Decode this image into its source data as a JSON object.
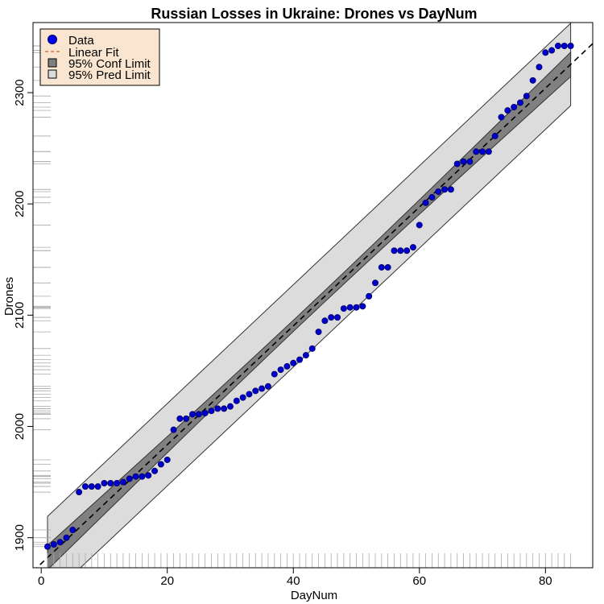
{
  "chart_data": {
    "type": "scatter",
    "title": "Russian Losses in Ukraine: Drones vs DayNum",
    "xlabel": "DayNum",
    "ylabel": "Drones",
    "xlim": [
      -1.3,
      87.5
    ],
    "ylim": [
      1873,
      2363
    ],
    "xticks": [
      0,
      20,
      40,
      60,
      80
    ],
    "yticks": [
      1900,
      2000,
      2100,
      2200,
      2300
    ],
    "grid": false,
    "legend_position": "top-left",
    "legend": [
      {
        "label": "Data",
        "kind": "point"
      },
      {
        "label": "Linear Fit",
        "kind": "dashed-line"
      },
      {
        "label": "95% Conf Limit",
        "kind": "dark-box"
      },
      {
        "label": "95% Pred Limit",
        "kind": "light-box"
      }
    ],
    "colors": {
      "point_fill": "#0000cc",
      "point_stroke": "#000066",
      "conf_band": "#808080",
      "pred_band": "#dcdcdc",
      "legend_bg": "#fae6d0",
      "fit_line": "#000000"
    },
    "fit": {
      "intercept": 1876.8,
      "slope": 5.34
    },
    "conf_band": {
      "x_range": [
        1,
        84
      ],
      "halfwidth_at_ends": 11,
      "halfwidth_at_center": 5
    },
    "pred_band": {
      "x_range": [
        1,
        84
      ],
      "halfwidth": 37
    },
    "series": [
      {
        "name": "Data",
        "x": [
          1,
          2,
          3,
          4,
          5,
          6,
          7,
          8,
          9,
          10,
          11,
          12,
          13,
          14,
          15,
          16,
          17,
          18,
          19,
          20,
          21,
          22,
          23,
          24,
          25,
          26,
          27,
          28,
          29,
          30,
          31,
          32,
          33,
          34,
          35,
          36,
          37,
          38,
          39,
          40,
          41,
          42,
          43,
          44,
          45,
          46,
          47,
          48,
          49,
          50,
          51,
          52,
          53,
          54,
          55,
          56,
          57,
          58,
          59,
          60,
          61,
          62,
          63,
          64,
          65,
          66,
          67,
          68,
          69,
          70,
          71,
          72,
          73,
          74,
          75,
          76,
          77,
          78,
          79,
          80,
          81,
          82,
          83,
          84
        ],
        "y": [
          1892,
          1894,
          1896,
          1900,
          1907,
          1941,
          1946,
          1946,
          1946,
          1949,
          1949,
          1949,
          1950,
          1953,
          1955,
          1955,
          1956,
          1960,
          1966,
          1970,
          1997,
          2007,
          2007,
          2011,
          2011,
          2012,
          2014,
          2016,
          2016,
          2018,
          2023,
          2026,
          2029,
          2032,
          2034,
          2036,
          2047,
          2051,
          2054,
          2057,
          2060,
          2064,
          2070,
          2085,
          2095,
          2098,
          2098,
          2106,
          2107,
          2107,
          2108,
          2117,
          2129,
          2143,
          2143,
          2158,
          2158,
          2158,
          2161,
          2181,
          2201,
          2206,
          2211,
          2213,
          2213,
          2236,
          2238,
          2238,
          2247,
          2247,
          2247,
          2261,
          2278,
          2284,
          2287,
          2291,
          2297,
          2311,
          2323,
          2336,
          2338,
          2342,
          2342,
          2342
        ]
      }
    ],
    "rug_x_count": 84,
    "rug_y_count": 84
  }
}
